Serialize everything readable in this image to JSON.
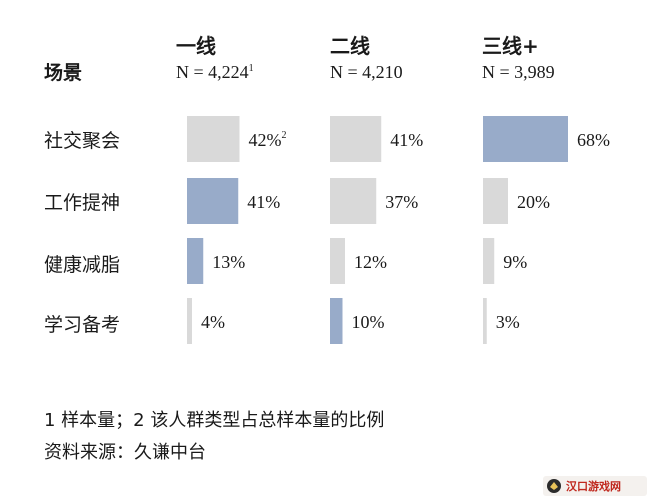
{
  "chart_data": {
    "type": "bar",
    "row_header": "场景",
    "series": [
      {
        "name": "一线",
        "n_label": "N = 4,224",
        "n_sup": "1"
      },
      {
        "name": "二线",
        "n_label": "N = 4,210",
        "n_sup": ""
      },
      {
        "name": "三线+",
        "n_label": "N = 3,989",
        "n_sup": ""
      }
    ],
    "categories": [
      "社交聚会",
      "工作提神",
      "健康减脂",
      "学习备考"
    ],
    "values": [
      [
        42,
        41,
        68
      ],
      [
        41,
        37,
        20
      ],
      [
        13,
        12,
        9
      ],
      [
        4,
        10,
        3
      ]
    ],
    "highlight": [
      [
        false,
        false,
        true
      ],
      [
        true,
        false,
        false
      ],
      [
        true,
        false,
        false
      ],
      [
        false,
        true,
        false
      ]
    ],
    "first_value_sup": "2",
    "value_suffix": "%",
    "colors": {
      "highlight": "#98abc9",
      "normal": "#d9d9d9"
    }
  },
  "footnotes": {
    "line1": "1 样本量；2 该人群类型占总样本量的比例",
    "line2": "资料来源：久谦中台"
  },
  "watermark": {
    "text": "汉口游戏网"
  }
}
